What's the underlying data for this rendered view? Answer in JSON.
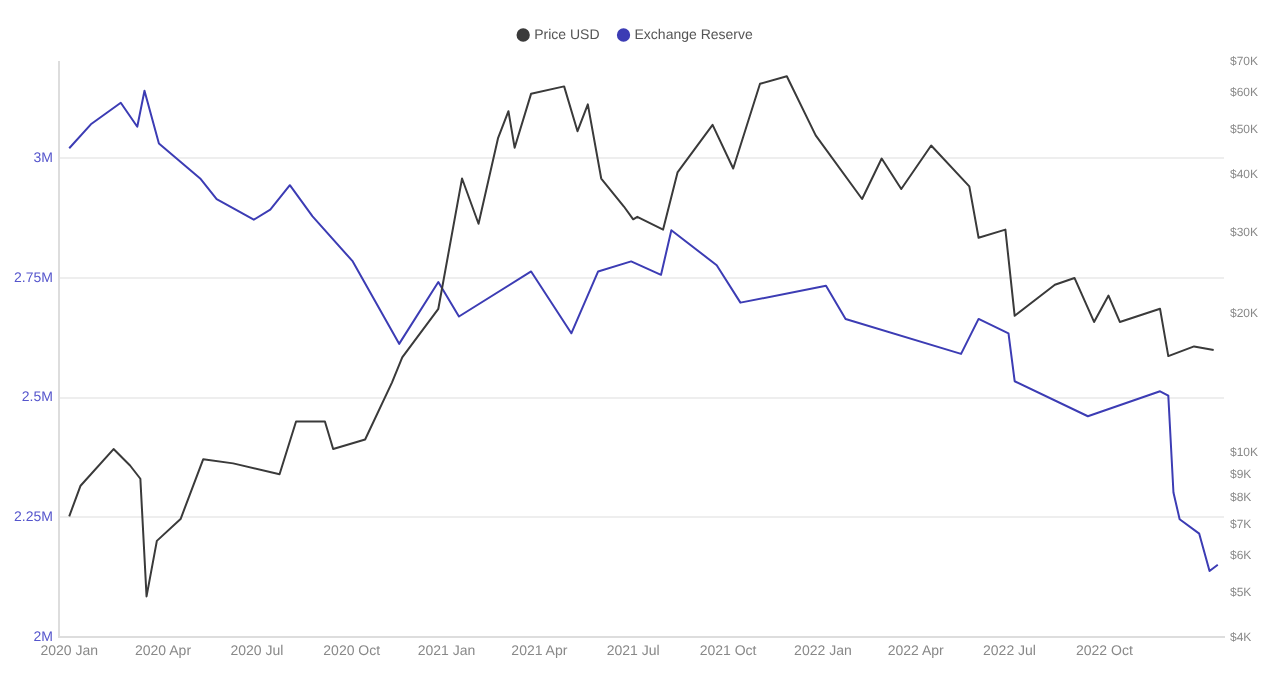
{
  "chart_data": {
    "type": "line",
    "legend": "top",
    "grid": "y",
    "log": "y2",
    "marker": "none",
    "line_style": "solid",
    "xlim": [
      "2019-12-22",
      "2023-01-25"
    ],
    "xticks": [
      {
        "value": "2020-01",
        "label": "2020 Jan"
      },
      {
        "value": "2020-04",
        "label": "2020 Apr"
      },
      {
        "value": "2020-07",
        "label": "2020 Jul"
      },
      {
        "value": "2020-10",
        "label": "2020 Oct"
      },
      {
        "value": "2021-01",
        "label": "2021 Jan"
      },
      {
        "value": "2021-04",
        "label": "2021 Apr"
      },
      {
        "value": "2021-07",
        "label": "2021 Jul"
      },
      {
        "value": "2021-10",
        "label": "2021 Oct"
      },
      {
        "value": "2022-01",
        "label": "2022 Jan"
      },
      {
        "value": "2022-04",
        "label": "2022 Apr"
      },
      {
        "value": "2022-07",
        "label": "2022 Jul"
      },
      {
        "value": "2022-10",
        "label": "2022 Oct"
      }
    ],
    "ylim": [
      2000000,
      3200000
    ],
    "yticks": [
      {
        "value": 2000000,
        "label": "2M"
      },
      {
        "value": 2250000,
        "label": "2.25M"
      },
      {
        "value": 2500000,
        "label": "2.5M"
      },
      {
        "value": 2750000,
        "label": "2.75M"
      },
      {
        "value": 3000000,
        "label": "3M"
      }
    ],
    "y2lim": [
      4000,
      70000
    ],
    "y2ticks": [
      {
        "value": 4000,
        "label": "$4K"
      },
      {
        "value": 5000,
        "label": "$5K"
      },
      {
        "value": 6000,
        "label": "$6K"
      },
      {
        "value": 7000,
        "label": "$7K"
      },
      {
        "value": 8000,
        "label": "$8K"
      },
      {
        "value": 9000,
        "label": "$9K"
      },
      {
        "value": 10000,
        "label": "$10K"
      },
      {
        "value": 20000,
        "label": "$20K"
      },
      {
        "value": 30000,
        "label": "$30K"
      },
      {
        "value": 40000,
        "label": "$40K"
      },
      {
        "value": 50000,
        "label": "$50K"
      },
      {
        "value": 60000,
        "label": "$60K"
      },
      {
        "value": 70000,
        "label": "$70K"
      }
    ],
    "series": [
      {
        "name": "Price USD",
        "color": "#3a3a3a",
        "axis": "y2",
        "x": [
          "2020-01-01",
          "2020-01-12",
          "2020-02-13",
          "2020-02-29",
          "2020-03-10",
          "2020-03-16",
          "2020-03-26",
          "2020-04-18",
          "2020-05-10",
          "2020-06-08",
          "2020-07-23",
          "2020-08-08",
          "2020-09-05",
          "2020-09-13",
          "2020-10-14",
          "2020-11-09",
          "2020-11-19",
          "2020-12-24",
          "2021-01-16",
          "2021-02-01",
          "2021-02-20",
          "2021-03-02",
          "2021-03-08",
          "2021-03-24",
          "2021-04-25",
          "2021-05-08",
          "2021-05-18",
          "2021-05-31",
          "2021-06-22",
          "2021-07-01",
          "2021-07-05",
          "2021-07-30",
          "2021-08-13",
          "2021-09-16",
          "2021-10-06",
          "2021-11-01",
          "2021-11-27",
          "2021-12-25",
          "2022-02-08",
          "2022-02-27",
          "2022-03-18",
          "2022-04-16",
          "2022-05-23",
          "2022-06-01",
          "2022-06-27",
          "2022-07-06",
          "2022-08-14",
          "2022-09-02",
          "2022-09-21",
          "2022-10-05",
          "2022-10-16",
          "2022-11-24",
          "2022-12-02",
          "2022-12-27",
          "2023-01-15"
        ],
        "values": [
          7300,
          8500,
          10200,
          9400,
          8800,
          4900,
          6460,
          7200,
          9700,
          9500,
          9000,
          11700,
          11700,
          10200,
          10700,
          14200,
          16100,
          20500,
          39200,
          31300,
          48000,
          54800,
          45700,
          59800,
          62000,
          49600,
          56700,
          39200,
          34100,
          32000,
          32400,
          30400,
          40400,
          51200,
          41200,
          62800,
          65200,
          48600,
          35400,
          43300,
          37200,
          46200,
          37700,
          29200,
          30400,
          19800,
          23100,
          23900,
          19200,
          21900,
          19200,
          20500,
          16200,
          17000,
          16700
        ]
      },
      {
        "name": "Exchange Reserve",
        "color": "#3c3cb4",
        "x": [
          "2020-01-01",
          "2020-01-22",
          "2020-02-20",
          "2020-03-07",
          "2020-03-14",
          "2020-03-28",
          "2020-05-07",
          "2020-05-23",
          "2020-06-28",
          "2020-07-14",
          "2020-08-02",
          "2020-08-24",
          "2020-10-02",
          "2020-11-16",
          "2020-12-24",
          "2021-01-13",
          "2021-03-24",
          "2021-05-02",
          "2021-05-28",
          "2021-06-29",
          "2021-07-28",
          "2021-08-07",
          "2021-09-20",
          "2021-10-13",
          "2022-01-04",
          "2022-01-23",
          "2022-05-15",
          "2022-06-01",
          "2022-06-30",
          "2022-07-06",
          "2022-09-15",
          "2022-11-24",
          "2022-12-02",
          "2022-12-07",
          "2022-12-13",
          "2023-01-01",
          "2023-01-11",
          "2023-01-19"
        ],
        "values": [
          3020000,
          3070000,
          3115000,
          3065000,
          3140000,
          3030000,
          2957000,
          2914000,
          2871000,
          2892000,
          2943000,
          2878000,
          2784000,
          2612000,
          2741000,
          2669000,
          2763000,
          2634000,
          2763000,
          2784000,
          2756000,
          2849000,
          2776000,
          2698000,
          2733000,
          2664000,
          2591000,
          2664000,
          2634000,
          2534000,
          2461000,
          2513000,
          2504000,
          2302000,
          2246000,
          2216000,
          2138000,
          2151000
        ]
      }
    ]
  }
}
